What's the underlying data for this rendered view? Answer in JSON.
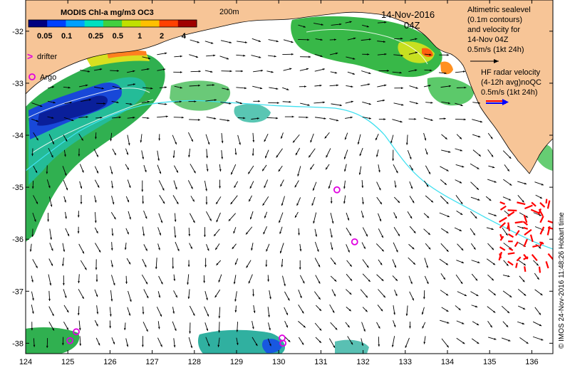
{
  "chart_data": {
    "type": "map",
    "title": "MODIS Chl-a mg/m3 OC3",
    "date": "14-Nov-2016",
    "hour": "04Z",
    "isobath_label": "200m",
    "xlim": [
      124,
      136.5
    ],
    "ylim": [
      -38.2,
      -31.4
    ],
    "x_ticks": [
      124,
      125,
      126,
      127,
      128,
      129,
      130,
      131,
      132,
      133,
      134,
      135,
      136
    ],
    "y_ticks": [
      -32,
      -33,
      -34,
      -35,
      -36,
      -37,
      -38
    ],
    "colorbar": {
      "ticks": [
        "0.05",
        "0.1",
        "0.25",
        "0.5",
        "1",
        "2",
        "4"
      ],
      "values": [
        0.05,
        0.1,
        0.25,
        0.5,
        1,
        2,
        4
      ],
      "colors": [
        "#000080",
        "#0040ff",
        "#00a0ff",
        "#00e0c0",
        "#40d040",
        "#c0e000",
        "#ffc000",
        "#ff4000",
        "#a00000"
      ]
    },
    "legend": {
      "drifter": "drifter",
      "argo": "Argo",
      "sealevel": [
        "Altimetric sealevel",
        "(0.1m contours)",
        "and velocity for",
        "14-Nov 04Z",
        "0.5m/s (1kt 24h)"
      ],
      "hfradar": [
        "HF radar velocity",
        "(4-12h avg)noQC",
        "0.5m/s (1kt 24h)"
      ]
    },
    "argo_floats": [
      {
        "lon": 125.05,
        "lat": -37.95
      },
      {
        "lon": 125.2,
        "lat": -37.78
      },
      {
        "lon": 130.08,
        "lat": -37.9
      },
      {
        "lon": 130.1,
        "lat": -38.0
      },
      {
        "lon": 131.38,
        "lat": -35.05
      },
      {
        "lon": 131.8,
        "lat": -36.05
      }
    ],
    "credit": "© IMOS 24-Nov-2016 11:48:26 Hobart time",
    "colors": {
      "land": "#f7c597",
      "sea": "#ffffff",
      "argo": "#e000e0",
      "hf": "#ff0000",
      "isobath": "#40e0f0",
      "arrow": "#000000"
    }
  }
}
